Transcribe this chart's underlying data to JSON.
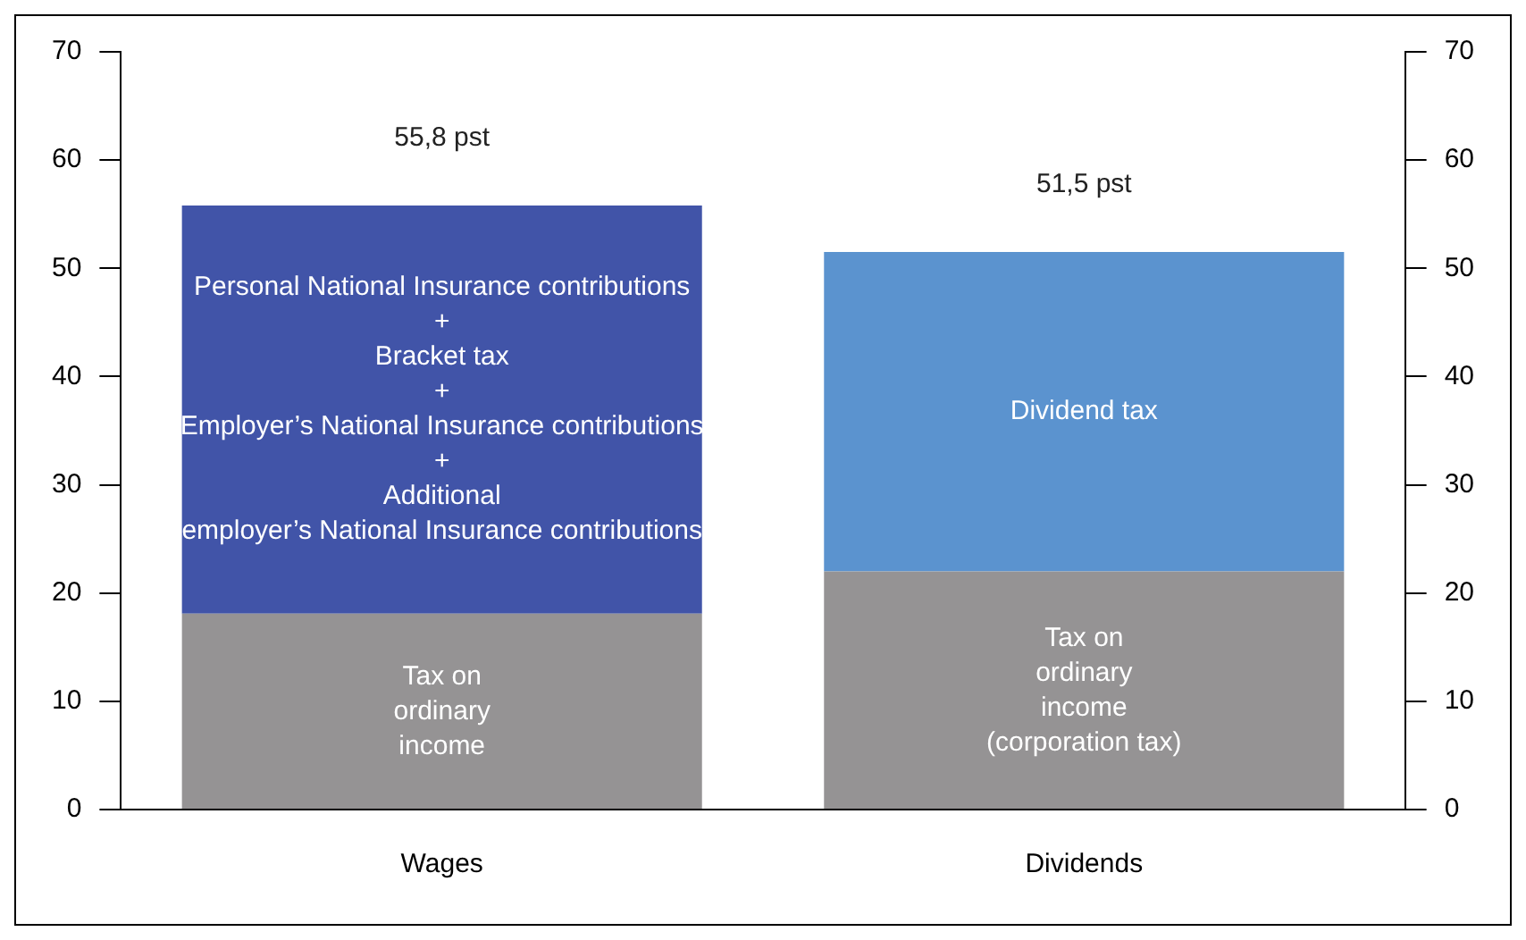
{
  "chart_data": {
    "type": "bar",
    "stacked": true,
    "categories": [
      "Wages",
      "Dividends"
    ],
    "series": [
      {
        "color": "#959394",
        "values": [
          18.1,
          22
        ]
      },
      {
        "color": "#4154a8",
        "values": [
          37.7,
          null
        ]
      },
      {
        "color": "#5b93cf",
        "values": [
          null,
          29.5
        ]
      }
    ],
    "ylim": [
      0,
      70
    ],
    "yticks": [
      0,
      10,
      20,
      30,
      40,
      50,
      60,
      70
    ],
    "y2lim": [
      0,
      70
    ],
    "y2ticks": [
      0,
      10,
      20,
      30,
      40,
      50,
      60,
      70
    ],
    "grid": false,
    "legend": false,
    "totals": [
      "55,8 pst",
      "51,5 pst"
    ],
    "annotations": [
      "Tax on\nordinary\nincome",
      "Personal National Insurance contributions\n+\nBracket tax\n+\nEmployer’s National Insurance contributions\n+\nAdditional\nemployer’s National Insurance contributions",
      "Tax on\nordinary\nincome\n(corporation tax)",
      "Dividend tax"
    ]
  }
}
